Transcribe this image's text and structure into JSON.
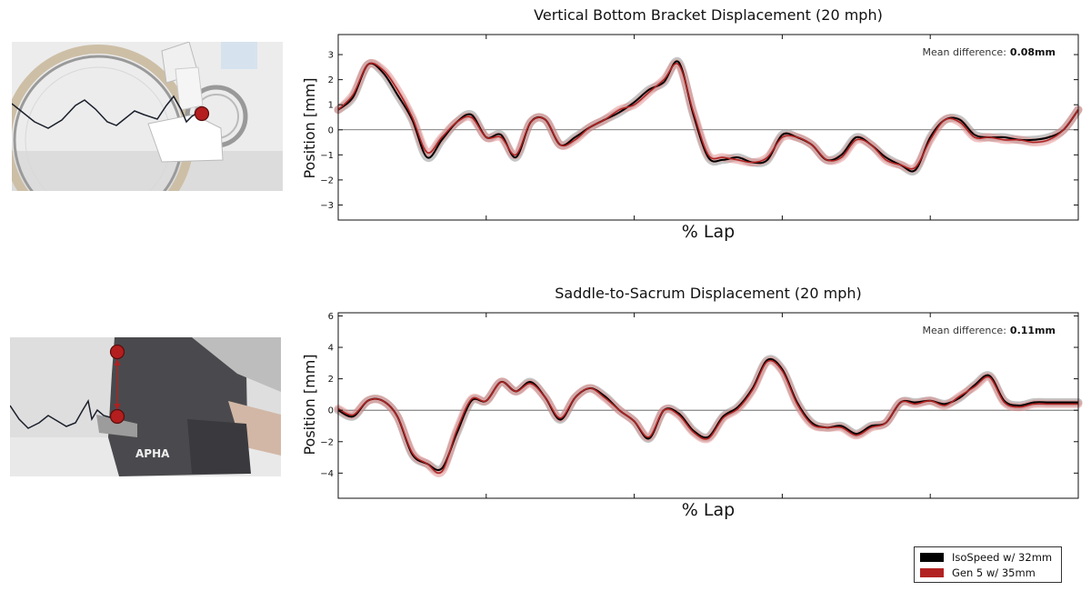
{
  "colors": {
    "isospeed": "#000000",
    "gen5": "#b22222",
    "isospeed_band": "#8c8c8c",
    "gen5_band": "#e48a8a",
    "marker": "#b41e1e"
  },
  "photos": [
    {
      "subject": "cyclist-foot-on-crank",
      "marker": "red-dot-bottom-bracket"
    },
    {
      "subject": "cyclist-saddle-and-sacrum",
      "marker": "red-dots-with-arrow"
    }
  ],
  "legend": {
    "items": [
      {
        "label": "IsoSpeed w/ 32mm",
        "color": "#000000"
      },
      {
        "label": "Gen 5 w/ 35mm",
        "color": "#b22222"
      }
    ]
  },
  "chart_data": [
    {
      "type": "line",
      "title": "Vertical Bottom Bracket Displacement (20 mph)",
      "xlabel": "% Lap",
      "ylabel": "Position [mm]",
      "xlim": [
        0,
        100
      ],
      "ylim": [
        -3.6,
        3.8
      ],
      "yticks": [
        -3,
        -2,
        -1,
        0,
        1,
        2,
        3
      ],
      "x_ticks_unlabeled": 5,
      "grid": false,
      "zero_line": true,
      "annotation": {
        "label": "Mean difference:",
        "value": "0.08mm"
      },
      "x": [
        0,
        2,
        4,
        6,
        8,
        10,
        12,
        14,
        16,
        18,
        20,
        22,
        24,
        26,
        28,
        30,
        32,
        34,
        36,
        38,
        40,
        42,
        44,
        46,
        48,
        50,
        52,
        54,
        56,
        58,
        60,
        62,
        64,
        66,
        68,
        70,
        72,
        74,
        76,
        78,
        80,
        82,
        84,
        86,
        88,
        90,
        92,
        94,
        96,
        98,
        100
      ],
      "series": [
        {
          "name": "IsoSpeed w/ 32mm",
          "values": [
            0.8,
            1.3,
            2.6,
            2.3,
            1.4,
            0.4,
            -1.1,
            -0.4,
            0.3,
            0.6,
            -0.3,
            -0.2,
            -1.1,
            0.3,
            0.4,
            -0.6,
            -0.3,
            0.1,
            0.4,
            0.7,
            1.1,
            1.6,
            1.9,
            2.7,
            0.6,
            -1.1,
            -1.2,
            -1.1,
            -1.3,
            -1.2,
            -0.2,
            -0.3,
            -0.6,
            -1.2,
            -1.0,
            -0.3,
            -0.6,
            -1.1,
            -1.4,
            -1.6,
            -0.3,
            0.4,
            0.4,
            -0.2,
            -0.3,
            -0.3,
            -0.4,
            -0.4,
            -0.3,
            0.0,
            0.8
          ]
        },
        {
          "name": "Gen 5 w/ 35mm",
          "values": [
            0.8,
            1.4,
            2.6,
            2.4,
            1.6,
            0.5,
            -0.9,
            -0.3,
            0.3,
            0.5,
            -0.3,
            -0.3,
            -1.0,
            0.3,
            0.4,
            -0.6,
            -0.4,
            0.1,
            0.4,
            0.8,
            1.0,
            1.5,
            2.0,
            2.6,
            0.7,
            -1.0,
            -1.1,
            -1.2,
            -1.3,
            -1.1,
            -0.3,
            -0.3,
            -0.6,
            -1.2,
            -1.1,
            -0.4,
            -0.6,
            -1.2,
            -1.4,
            -1.5,
            -0.4,
            0.4,
            0.3,
            -0.3,
            -0.3,
            -0.4,
            -0.4,
            -0.5,
            -0.4,
            0.0,
            0.8
          ]
        }
      ]
    },
    {
      "type": "line",
      "title": "Saddle-to-Sacrum Displacement (20 mph)",
      "xlabel": "% Lap",
      "ylabel": "Position [mm]",
      "xlim": [
        0,
        100
      ],
      "ylim": [
        -5.6,
        6.2
      ],
      "yticks": [
        -4,
        -2,
        0,
        2,
        4,
        6
      ],
      "x_ticks_unlabeled": 5,
      "grid": false,
      "zero_line": true,
      "annotation": {
        "label": "Mean difference:",
        "value": "0.11mm"
      },
      "x": [
        0,
        2,
        4,
        6,
        8,
        10,
        12,
        14,
        16,
        18,
        20,
        22,
        24,
        26,
        28,
        30,
        32,
        34,
        36,
        38,
        40,
        42,
        44,
        46,
        48,
        50,
        52,
        54,
        56,
        58,
        60,
        62,
        64,
        66,
        68,
        70,
        72,
        74,
        76,
        78,
        80,
        82,
        84,
        86,
        88,
        90,
        92,
        94,
        96,
        98,
        100
      ],
      "series": [
        {
          "name": "IsoSpeed w/ 32mm",
          "values": [
            0.0,
            -0.4,
            0.6,
            0.6,
            -0.4,
            -2.8,
            -3.4,
            -3.7,
            -1.5,
            0.6,
            0.6,
            1.8,
            1.2,
            1.8,
            0.8,
            -0.6,
            0.8,
            1.4,
            0.9,
            0.0,
            -0.7,
            -1.8,
            0.0,
            -0.2,
            -1.3,
            -1.7,
            -0.4,
            0.2,
            1.4,
            3.2,
            2.6,
            0.5,
            -0.8,
            -1.1,
            -1.0,
            -1.5,
            -1.0,
            -0.8,
            0.5,
            0.5,
            0.6,
            0.4,
            0.8,
            1.6,
            2.2,
            0.6,
            0.3,
            0.5,
            0.5,
            0.5,
            0.5
          ]
        },
        {
          "name": "Gen 5 w/ 35mm",
          "values": [
            0.1,
            -0.3,
            0.6,
            0.6,
            -0.4,
            -2.7,
            -3.4,
            -3.9,
            -1.3,
            0.7,
            0.6,
            1.8,
            1.2,
            1.7,
            0.8,
            -0.5,
            0.8,
            1.4,
            0.8,
            0.0,
            -0.7,
            -1.7,
            0.0,
            -0.3,
            -1.4,
            -1.8,
            -0.5,
            0.1,
            1.3,
            3.1,
            2.5,
            0.4,
            -0.9,
            -1.1,
            -1.1,
            -1.6,
            -1.1,
            -0.8,
            0.5,
            0.4,
            0.6,
            0.3,
            0.9,
            1.5,
            2.1,
            0.5,
            0.2,
            0.4,
            0.4,
            0.4,
            0.4
          ]
        }
      ]
    }
  ]
}
